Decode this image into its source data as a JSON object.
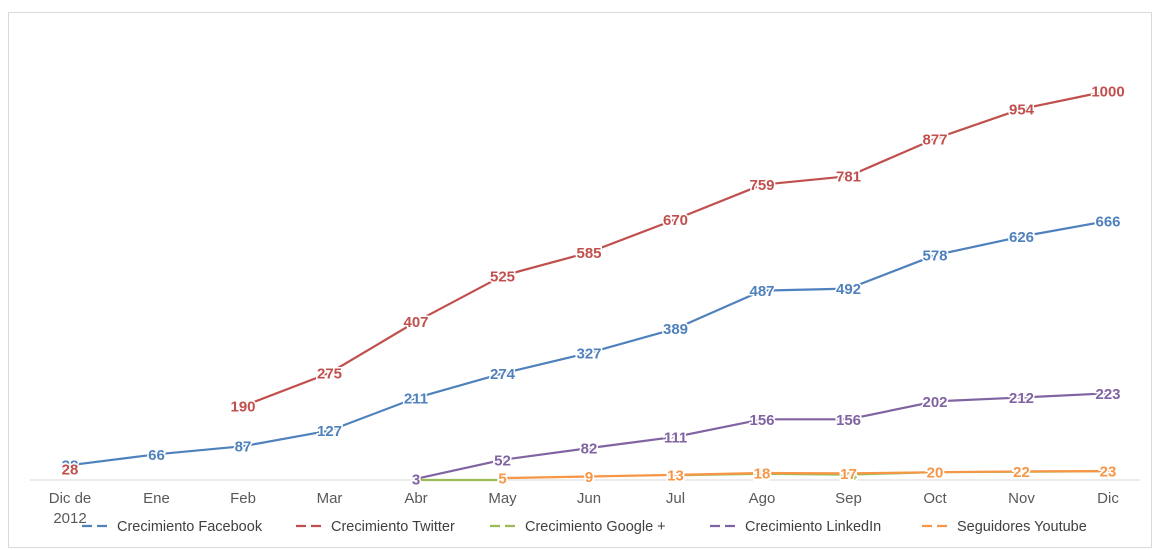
{
  "chart_data": {
    "type": "line",
    "categories": [
      "Dic de 2012",
      "Ene",
      "Feb",
      "Mar",
      "Abr",
      "May",
      "Jun",
      "Jul",
      "Ago",
      "Sep",
      "Oct",
      "Nov",
      "Dic"
    ],
    "series": [
      {
        "name": "Crecimiento Facebook",
        "color": "#4f81bd",
        "dashed_legend": true,
        "values": [
          38,
          66,
          87,
          127,
          211,
          274,
          327,
          389,
          487,
          492,
          578,
          626,
          666
        ]
      },
      {
        "name": "Crecimiento Twitter",
        "color": "#c0504d",
        "dashed_legend": true,
        "values": [
          28,
          null,
          190,
          275,
          407,
          525,
          585,
          670,
          759,
          781,
          877,
          954,
          1000
        ]
      },
      {
        "name": "Crecimiento Google +",
        "color": "#9bbb59",
        "dashed_legend": true,
        "values": [
          null,
          null,
          null,
          null,
          0,
          0,
          null,
          12,
          16,
          14,
          20,
          21,
          23
        ]
      },
      {
        "name": "Crecimiento LinkedIn",
        "color": "#8064a2",
        "dashed_legend": true,
        "values": [
          null,
          null,
          null,
          null,
          3,
          52,
          82,
          111,
          156,
          156,
          202,
          212,
          223
        ]
      },
      {
        "name": "Seguidores Youtube",
        "color": "#f79646",
        "dashed_legend": true,
        "values": [
          null,
          null,
          null,
          null,
          null,
          5,
          9,
          13,
          18,
          17,
          20,
          22,
          23
        ]
      }
    ],
    "ylim": [
      0,
      1000
    ],
    "grid": false,
    "legend_position": "bottom"
  }
}
